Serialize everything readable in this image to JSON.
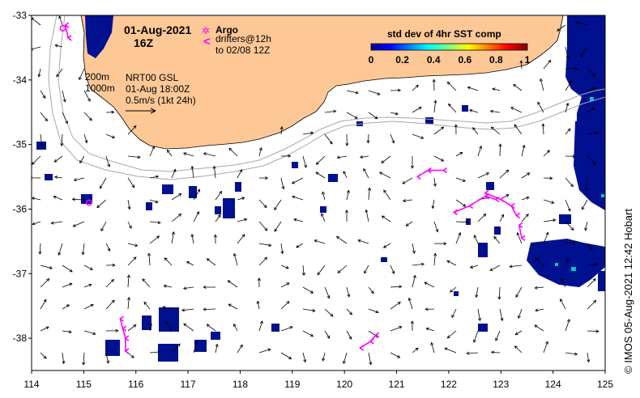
{
  "map": {
    "title_date": "01-Aug-2021",
    "title_time": "16Z",
    "contours": {
      "label_200": "200m",
      "label_1000": "1000m"
    },
    "product": {
      "line1": "NRT00 GSL",
      "line2": "01-Aug 18:00Z",
      "line3": "0.5m/s (1kt 24h)"
    },
    "legend": {
      "argo_symbol": "✲",
      "argo_label": "Argo",
      "drifter_symbol": "<",
      "drifter_line1": "drifters@12h",
      "drifter_line2": "to 02/08 12Z"
    },
    "colorbar": {
      "title": "std dev of 4hr SST comp",
      "ticks": [
        "0",
        "0.2",
        "0.4",
        "0.6",
        "0.8",
        "1"
      ]
    },
    "x_ticks": [
      "114",
      "115",
      "116",
      "117",
      "118",
      "119",
      "120",
      "121",
      "122",
      "123",
      "124",
      "125"
    ],
    "y_ticks": [
      "-33",
      "-34",
      "-35",
      "-36",
      "-37",
      "-38"
    ],
    "credit": "© IMOS 05-Aug-2021 12:42 Hobart",
    "colors": {
      "land": "#fdc896",
      "ocean": "#ffffff",
      "sst_low": "#000c8c",
      "drifter": "#ff00ff",
      "contour": "#a8a8a8"
    }
  },
  "chart_data": {
    "type": "map",
    "lon_range": [
      114,
      125
    ],
    "lat_range": [
      -38.5,
      -33
    ],
    "colorbar_range": [
      0,
      1
    ],
    "argo_floats": [
      {
        "lon": 114.6,
        "lat": -33.2
      },
      {
        "lon": 115.1,
        "lat": -35.9
      }
    ],
    "drifter_tracks": [
      [
        [
          115.7,
          -37.7
        ],
        [
          115.75,
          -37.85
        ],
        [
          115.8,
          -38.0
        ],
        [
          115.8,
          -38.2
        ]
      ],
      [
        [
          114.65,
          -33.15
        ],
        [
          114.7,
          -33.35
        ]
      ],
      [
        [
          121.4,
          -35.5
        ],
        [
          121.6,
          -35.4
        ],
        [
          121.9,
          -35.4
        ]
      ],
      [
        [
          122.1,
          -36.05
        ],
        [
          122.4,
          -35.95
        ],
        [
          122.7,
          -35.8
        ],
        [
          122.9,
          -35.85
        ]
      ],
      [
        [
          122.7,
          -35.75
        ],
        [
          123.0,
          -35.85
        ],
        [
          123.2,
          -35.95
        ],
        [
          123.3,
          -36.1
        ]
      ],
      [
        [
          123.35,
          -36.25
        ],
        [
          123.4,
          -36.45
        ]
      ],
      [
        [
          120.3,
          -38.15
        ],
        [
          120.5,
          -38.05
        ],
        [
          120.6,
          -37.95
        ]
      ]
    ]
  }
}
